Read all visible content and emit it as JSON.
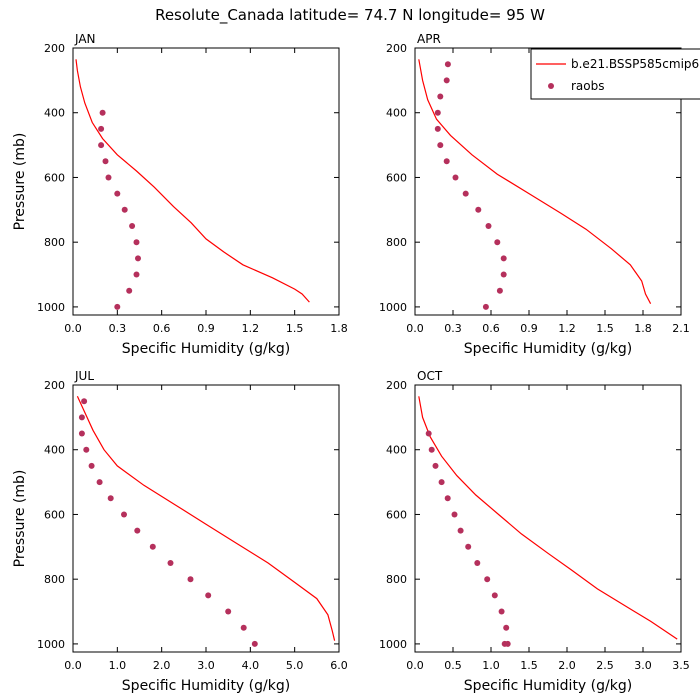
{
  "title": "Resolute_Canada  latitude= 74.7 N longitude= 95 W",
  "legend": {
    "model_label": "b.e21.BSSP585cmip6",
    "obs_label": "raobs",
    "model_color": "#ff0000",
    "obs_color": "#b5305c"
  },
  "chart_data": [
    {
      "type": "line",
      "panel_title": "JAN",
      "xlabel": "Specific Humidity (g/kg)",
      "ylabel": "Pressure (mb)",
      "xlim": [
        0,
        1.8
      ],
      "xticks": [
        "0.0",
        "0.3",
        "0.6",
        "0.9",
        "1.2",
        "1.5",
        "1.8"
      ],
      "ylim": [
        1025,
        200
      ],
      "yticks": [
        "200",
        "400",
        "600",
        "800",
        "1000"
      ],
      "series": [
        {
          "name": "b.e21.BSSP585cmip6",
          "kind": "line",
          "points": [
            [
              0.02,
              235
            ],
            [
              0.03,
              270
            ],
            [
              0.05,
              320
            ],
            [
              0.08,
              370
            ],
            [
              0.13,
              430
            ],
            [
              0.2,
              480
            ],
            [
              0.3,
              530
            ],
            [
              0.43,
              580
            ],
            [
              0.55,
              630
            ],
            [
              0.68,
              690
            ],
            [
              0.8,
              740
            ],
            [
              0.9,
              790
            ],
            [
              1.02,
              830
            ],
            [
              1.15,
              870
            ],
            [
              1.35,
              910
            ],
            [
              1.5,
              945
            ],
            [
              1.55,
              960
            ],
            [
              1.6,
              985
            ]
          ]
        },
        {
          "name": "raobs",
          "kind": "scatter",
          "points": [
            [
              0.2,
              400
            ],
            [
              0.19,
              450
            ],
            [
              0.19,
              500
            ],
            [
              0.22,
              550
            ],
            [
              0.24,
              600
            ],
            [
              0.3,
              650
            ],
            [
              0.35,
              700
            ],
            [
              0.4,
              750
            ],
            [
              0.43,
              800
            ],
            [
              0.44,
              850
            ],
            [
              0.43,
              900
            ],
            [
              0.38,
              950
            ],
            [
              0.3,
              1000
            ]
          ]
        }
      ]
    },
    {
      "type": "line",
      "panel_title": "APR",
      "xlabel": "Specific Humidity (g/kg)",
      "ylabel": "",
      "xlim": [
        0,
        2.1
      ],
      "xticks": [
        "0.0",
        "0.3",
        "0.6",
        "0.9",
        "1.2",
        "1.5",
        "1.8",
        "2.1"
      ],
      "ylim": [
        1025,
        200
      ],
      "yticks": [
        "200",
        "400",
        "600",
        "800",
        "1000"
      ],
      "series": [
        {
          "name": "b.e21.BSSP585cmip6",
          "kind": "line",
          "points": [
            [
              0.03,
              235
            ],
            [
              0.06,
              300
            ],
            [
              0.1,
              360
            ],
            [
              0.17,
              420
            ],
            [
              0.28,
              470
            ],
            [
              0.45,
              530
            ],
            [
              0.65,
              590
            ],
            [
              0.9,
              650
            ],
            [
              1.15,
              710
            ],
            [
              1.35,
              760
            ],
            [
              1.55,
              820
            ],
            [
              1.7,
              870
            ],
            [
              1.79,
              920
            ],
            [
              1.82,
              960
            ],
            [
              1.86,
              990
            ]
          ]
        },
        {
          "name": "raobs",
          "kind": "scatter",
          "points": [
            [
              0.26,
              250
            ],
            [
              0.25,
              300
            ],
            [
              0.2,
              350
            ],
            [
              0.18,
              400
            ],
            [
              0.18,
              450
            ],
            [
              0.2,
              500
            ],
            [
              0.25,
              550
            ],
            [
              0.32,
              600
            ],
            [
              0.4,
              650
            ],
            [
              0.5,
              700
            ],
            [
              0.58,
              750
            ],
            [
              0.65,
              800
            ],
            [
              0.7,
              850
            ],
            [
              0.7,
              900
            ],
            [
              0.67,
              950
            ],
            [
              0.56,
              1000
            ]
          ]
        }
      ]
    },
    {
      "type": "line",
      "panel_title": "JUL",
      "xlabel": "Specific Humidity (g/kg)",
      "ylabel": "Pressure (mb)",
      "xlim": [
        0,
        6.0
      ],
      "xticks": [
        "0.0",
        "1.0",
        "2.0",
        "3.0",
        "4.0",
        "5.0",
        "6.0"
      ],
      "ylim": [
        1025,
        200
      ],
      "yticks": [
        "200",
        "400",
        "600",
        "800",
        "1000"
      ],
      "series": [
        {
          "name": "b.e21.BSSP585cmip6",
          "kind": "line",
          "points": [
            [
              0.1,
              235
            ],
            [
              0.25,
              280
            ],
            [
              0.45,
              340
            ],
            [
              0.7,
              400
            ],
            [
              1.0,
              450
            ],
            [
              1.6,
              510
            ],
            [
              2.3,
              570
            ],
            [
              3.0,
              630
            ],
            [
              3.7,
              690
            ],
            [
              4.4,
              750
            ],
            [
              5.0,
              810
            ],
            [
              5.5,
              860
            ],
            [
              5.75,
              910
            ],
            [
              5.85,
              960
            ],
            [
              5.9,
              990
            ]
          ]
        },
        {
          "name": "raobs",
          "kind": "scatter",
          "points": [
            [
              0.25,
              250
            ],
            [
              0.2,
              300
            ],
            [
              0.2,
              350
            ],
            [
              0.3,
              400
            ],
            [
              0.42,
              450
            ],
            [
              0.6,
              500
            ],
            [
              0.85,
              550
            ],
            [
              1.15,
              600
            ],
            [
              1.45,
              650
            ],
            [
              1.8,
              700
            ],
            [
              2.2,
              750
            ],
            [
              2.65,
              800
            ],
            [
              3.05,
              850
            ],
            [
              3.5,
              900
            ],
            [
              3.85,
              950
            ],
            [
              4.1,
              1000
            ]
          ]
        }
      ]
    },
    {
      "type": "line",
      "panel_title": "OCT",
      "xlabel": "Specific Humidity (g/kg)",
      "ylabel": "",
      "xlim": [
        0,
        3.5
      ],
      "xticks": [
        "0.0",
        "0.5",
        "1.0",
        "1.5",
        "2.0",
        "2.5",
        "3.0",
        "3.5"
      ],
      "ylim": [
        1025,
        200
      ],
      "yticks": [
        "200",
        "400",
        "600",
        "800",
        "1000"
      ],
      "series": [
        {
          "name": "b.e21.BSSP585cmip6",
          "kind": "line",
          "points": [
            [
              0.05,
              235
            ],
            [
              0.1,
              300
            ],
            [
              0.2,
              360
            ],
            [
              0.35,
              420
            ],
            [
              0.55,
              480
            ],
            [
              0.8,
              540
            ],
            [
              1.1,
              600
            ],
            [
              1.4,
              660
            ],
            [
              1.75,
              720
            ],
            [
              2.05,
              770
            ],
            [
              2.4,
              830
            ],
            [
              2.75,
              880
            ],
            [
              3.1,
              930
            ],
            [
              3.45,
              985
            ]
          ]
        },
        {
          "name": "raobs",
          "kind": "scatter",
          "points": [
            [
              0.18,
              350
            ],
            [
              0.22,
              400
            ],
            [
              0.27,
              450
            ],
            [
              0.35,
              500
            ],
            [
              0.43,
              550
            ],
            [
              0.52,
              600
            ],
            [
              0.6,
              650
            ],
            [
              0.7,
              700
            ],
            [
              0.82,
              750
            ],
            [
              0.95,
              800
            ],
            [
              1.05,
              850
            ],
            [
              1.14,
              900
            ],
            [
              1.2,
              950
            ],
            [
              1.22,
              1000
            ],
            [
              1.18,
              1000
            ]
          ]
        }
      ]
    }
  ]
}
